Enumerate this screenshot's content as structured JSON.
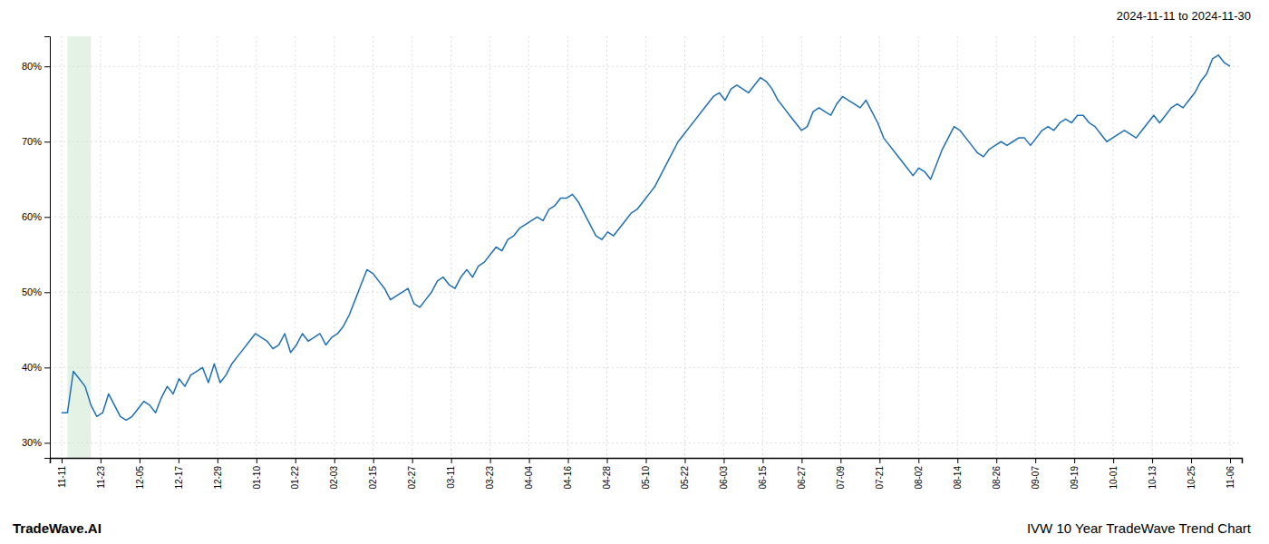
{
  "chart_data": {
    "type": "line",
    "title": "2024-11-11 to 2024-11-30",
    "annotations": [
      "TradeWave.AI",
      "IVW 10 Year TradeWave Trend Chart"
    ],
    "color": "#1f6fb5",
    "grid": true,
    "highlight": {
      "start": 1,
      "end": 5,
      "color": "#c8e6c9"
    },
    "xlim": [
      -2,
      201
    ],
    "xticks": [
      {
        "value": 0,
        "label": "11-11"
      },
      {
        "value": 6.633333333333333,
        "label": "11-23"
      },
      {
        "value": 13.266666666666666,
        "label": "12-05"
      },
      {
        "value": 19.9,
        "label": "12-17"
      },
      {
        "value": 26.53333333333333,
        "label": "12-29"
      },
      {
        "value": 33.166666666666664,
        "label": "01-10"
      },
      {
        "value": 39.8,
        "label": "01-22"
      },
      {
        "value": 46.43333333333333,
        "label": "02-03"
      },
      {
        "value": 53.06666666666667,
        "label": "02-15"
      },
      {
        "value": 59.7,
        "label": "02-27"
      },
      {
        "value": 66.33333333333333,
        "label": "03-11"
      },
      {
        "value": 72.96666666666667,
        "label": "03-23"
      },
      {
        "value": 79.6,
        "label": "04-04"
      },
      {
        "value": 86.23333333333333,
        "label": "04-16"
      },
      {
        "value": 92.86666666666666,
        "label": "04-28"
      },
      {
        "value": 99.5,
        "label": "05-10"
      },
      {
        "value": 106.13333333333333,
        "label": "05-22"
      },
      {
        "value": 112.76666666666667,
        "label": "06-03"
      },
      {
        "value": 119.4,
        "label": "06-15"
      },
      {
        "value": 126.03333333333333,
        "label": "06-27"
      },
      {
        "value": 132.66666666666666,
        "label": "07-09"
      },
      {
        "value": 139.3,
        "label": "07-21"
      },
      {
        "value": 145.93333333333334,
        "label": "08-02"
      },
      {
        "value": 152.56666666666666,
        "label": "08-14"
      },
      {
        "value": 159.2,
        "label": "08-26"
      },
      {
        "value": 165.83333333333334,
        "label": "09-07"
      },
      {
        "value": 172.46666666666667,
        "label": "09-19"
      },
      {
        "value": 179.1,
        "label": "10-01"
      },
      {
        "value": 185.73333333333332,
        "label": "10-13"
      },
      {
        "value": 192.36666666666667,
        "label": "10-25"
      },
      {
        "value": 199,
        "label": "11-06"
      }
    ],
    "ylim": [
      28,
      84
    ],
    "yticks": [
      {
        "value": 30,
        "label": "30%"
      },
      {
        "value": 40,
        "label": "40%"
      },
      {
        "value": 50,
        "label": "50%"
      },
      {
        "value": 60,
        "label": "60%"
      },
      {
        "value": 70,
        "label": "70%"
      },
      {
        "value": 80,
        "label": "80%"
      }
    ],
    "x": [
      0,
      1,
      2,
      3,
      4,
      5,
      6,
      7,
      8,
      9,
      10,
      11,
      12,
      13,
      14,
      15,
      16,
      17,
      18,
      19,
      20,
      21,
      22,
      23,
      24,
      25,
      26,
      27,
      28,
      29,
      30,
      31,
      32,
      33,
      34,
      35,
      36,
      37,
      38,
      39,
      40,
      41,
      42,
      43,
      44,
      45,
      46,
      47,
      48,
      49,
      50,
      51,
      52,
      53,
      54,
      55,
      56,
      57,
      58,
      59,
      60,
      61,
      62,
      63,
      64,
      65,
      66,
      67,
      68,
      69,
      70,
      71,
      72,
      73,
      74,
      75,
      76,
      77,
      78,
      79,
      80,
      81,
      82,
      83,
      84,
      85,
      86,
      87,
      88,
      89,
      90,
      91,
      92,
      93,
      94,
      95,
      96,
      97,
      98,
      99,
      100,
      101,
      102,
      103,
      104,
      105,
      106,
      107,
      108,
      109,
      110,
      111,
      112,
      113,
      114,
      115,
      116,
      117,
      118,
      119,
      120,
      121,
      122,
      123,
      124,
      125,
      126,
      127,
      128,
      129,
      130,
      131,
      132,
      133,
      134,
      135,
      136,
      137,
      138,
      139,
      140,
      141,
      142,
      143,
      144,
      145,
      146,
      147,
      148,
      149,
      150,
      151,
      152,
      153,
      154,
      155,
      156,
      157,
      158,
      159,
      160,
      161,
      162,
      163,
      164,
      165,
      166,
      167,
      168,
      169,
      170,
      171,
      172,
      173,
      174,
      175,
      176,
      177,
      178,
      179,
      180,
      181,
      182,
      183,
      184,
      185,
      186,
      187,
      188,
      189,
      190,
      191,
      192,
      193,
      194,
      195,
      196,
      197,
      198,
      199
    ],
    "values": [
      34.0,
      34.0,
      39.5,
      38.5,
      37.5,
      35.0,
      33.5,
      34.0,
      36.5,
      35.0,
      33.5,
      33.0,
      33.5,
      34.5,
      35.5,
      35.0,
      34.0,
      36.0,
      37.5,
      36.5,
      38.5,
      37.5,
      39.0,
      39.5,
      40.0,
      38.0,
      40.5,
      38.0,
      39.0,
      40.5,
      41.5,
      42.5,
      43.5,
      44.5,
      44.0,
      43.5,
      42.5,
      43.0,
      44.5,
      42.0,
      43.0,
      44.5,
      43.5,
      44.0,
      44.5,
      43.0,
      44.0,
      44.5,
      45.5,
      47.0,
      49.0,
      51.0,
      53.0,
      52.5,
      51.5,
      50.5,
      49.0,
      49.5,
      50.0,
      50.5,
      48.5,
      48.0,
      49.0,
      50.0,
      51.5,
      52.0,
      51.0,
      50.5,
      52.0,
      53.0,
      52.0,
      53.5,
      54.0,
      55.0,
      56.0,
      55.5,
      57.0,
      57.5,
      58.5,
      59.0,
      59.5,
      60.0,
      59.5,
      61.0,
      61.5,
      62.5,
      62.5,
      63.0,
      62.0,
      60.5,
      59.0,
      57.5,
      57.0,
      58.0,
      57.5,
      58.5,
      59.5,
      60.5,
      61.0,
      62.0,
      63.0,
      64.0,
      65.5,
      67.0,
      68.5,
      70.0,
      71.0,
      72.0,
      73.0,
      74.0,
      75.0,
      76.0,
      76.5,
      75.5,
      77.0,
      77.5,
      77.0,
      76.5,
      77.5,
      78.5,
      78.0,
      77.0,
      75.5,
      74.5,
      73.5,
      72.5,
      71.5,
      72.0,
      74.0,
      74.5,
      74.0,
      73.5,
      75.0,
      76.0,
      75.5,
      75.0,
      74.5,
      75.5,
      74.0,
      72.5,
      70.5,
      69.5,
      68.5,
      67.5,
      66.5,
      65.5,
      66.5,
      66.0,
      65.0,
      67.0,
      69.0,
      70.5,
      72.0,
      71.5,
      70.5,
      69.5,
      68.5,
      68.0,
      69.0,
      69.5,
      70.0,
      69.5,
      70.0,
      70.5,
      70.5,
      69.5,
      70.5,
      71.5,
      72.0,
      71.5,
      72.5,
      73.0,
      72.5,
      73.5,
      73.5,
      72.5,
      72.0,
      71.0,
      70.0,
      70.5,
      71.0,
      71.5,
      71.0,
      70.5,
      71.5,
      72.5,
      73.5,
      72.5,
      73.5,
      74.5,
      75.0,
      74.5,
      75.5,
      76.5,
      78.0,
      79.0,
      81.0,
      81.5,
      80.5,
      80.0
    ]
  }
}
